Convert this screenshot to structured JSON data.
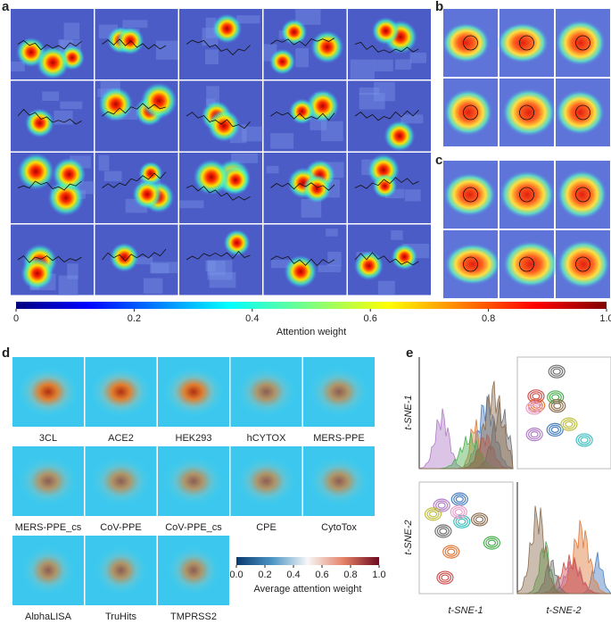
{
  "panel_labels": [
    "a",
    "b",
    "c",
    "d",
    "e"
  ],
  "colorbar": {
    "ticks": [
      "0",
      "0.2",
      "0.4",
      "0.6",
      "0.8",
      "1.0"
    ],
    "label": "Attention weight"
  },
  "panel_d": {
    "targets": [
      "3CL",
      "ACE2",
      "HEK293",
      "hCYTOX",
      "MERS-PPE",
      "MERS-PPE_cs",
      "CoV-PPE",
      "CoV-PPE_cs",
      "CPE",
      "CytoTox",
      "AlphaLISA",
      "TruHits",
      "TMPRSS2"
    ],
    "colorbar": {
      "ticks": [
        "0.0",
        "0.2",
        "0.4",
        "0.6",
        "0.8",
        "1.0"
      ],
      "label": "Average attention weight"
    }
  },
  "panel_e": {
    "y_labels": [
      "t-SNE-1",
      "t-SNE-2"
    ],
    "x_labels": [
      "t-SNE-1",
      "t-SNE-2"
    ]
  }
}
